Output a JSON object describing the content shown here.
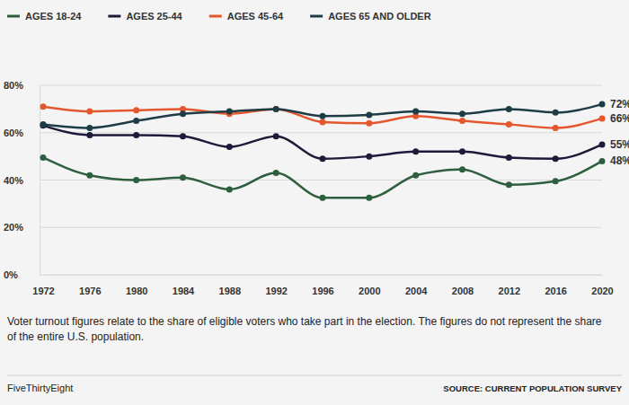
{
  "chart_data": {
    "type": "line",
    "x": [
      1972,
      1976,
      1980,
      1984,
      1988,
      1992,
      1996,
      2000,
      2004,
      2008,
      2012,
      2016,
      2020
    ],
    "xlim": [
      1972,
      2020
    ],
    "xticks": [
      1972,
      1976,
      1980,
      1984,
      1988,
      1992,
      1996,
      2000,
      2004,
      2008,
      2012,
      2016,
      2020
    ],
    "ylim": [
      0,
      80
    ],
    "yticks": [
      {
        "value": 0,
        "label": "0%"
      },
      {
        "value": 20,
        "label": "20%"
      },
      {
        "value": 40,
        "label": "40%"
      },
      {
        "value": 60,
        "label": "60%"
      },
      {
        "value": 80,
        "label": "80%"
      }
    ],
    "grid": true,
    "legend": "top",
    "marker": "circle",
    "line_style": "solid",
    "data_labels": true,
    "series": [
      {
        "name": "AGES 18-24",
        "color": "#2d5e3e",
        "values": [
          49.5,
          42,
          40,
          41,
          36,
          43,
          32.5,
          32.5,
          42,
          44.5,
          38,
          39.5,
          48
        ],
        "value_labels": [
          null,
          null,
          null,
          null,
          null,
          null,
          null,
          null,
          null,
          null,
          null,
          null,
          "48%"
        ]
      },
      {
        "name": "AGES 25-44",
        "color": "#1e1b3a",
        "values": [
          63,
          59,
          59,
          58.5,
          54,
          58.5,
          49,
          50,
          52,
          52,
          49.5,
          49,
          55
        ],
        "value_labels": [
          null,
          null,
          null,
          null,
          null,
          null,
          null,
          null,
          null,
          null,
          null,
          null,
          "55%"
        ]
      },
      {
        "name": "AGES 45-64",
        "color": "#e4572e",
        "values": [
          71,
          69,
          69.5,
          70,
          68,
          70,
          64.5,
          64,
          67,
          65,
          63.5,
          62,
          66
        ],
        "value_labels": [
          null,
          null,
          null,
          null,
          null,
          null,
          null,
          null,
          null,
          null,
          null,
          null,
          "66%"
        ]
      },
      {
        "name": "AGES 65 AND OLDER",
        "color": "#1d3c45",
        "values": [
          63.5,
          62,
          65,
          68,
          69,
          70,
          67,
          67.5,
          69,
          68,
          70,
          68.5,
          72
        ],
        "value_labels": [
          null,
          null,
          null,
          null,
          null,
          null,
          null,
          null,
          null,
          null,
          null,
          null,
          "72%"
        ]
      }
    ],
    "note": [
      "Voter turnout figures relate to the share of eligible voters who take part in the election. The figures do not represent the share",
      "of the entire U.S. population."
    ],
    "credit": "FiveThirtyEight",
    "source": "SOURCE: CURRENT POPULATION SURVEY"
  }
}
